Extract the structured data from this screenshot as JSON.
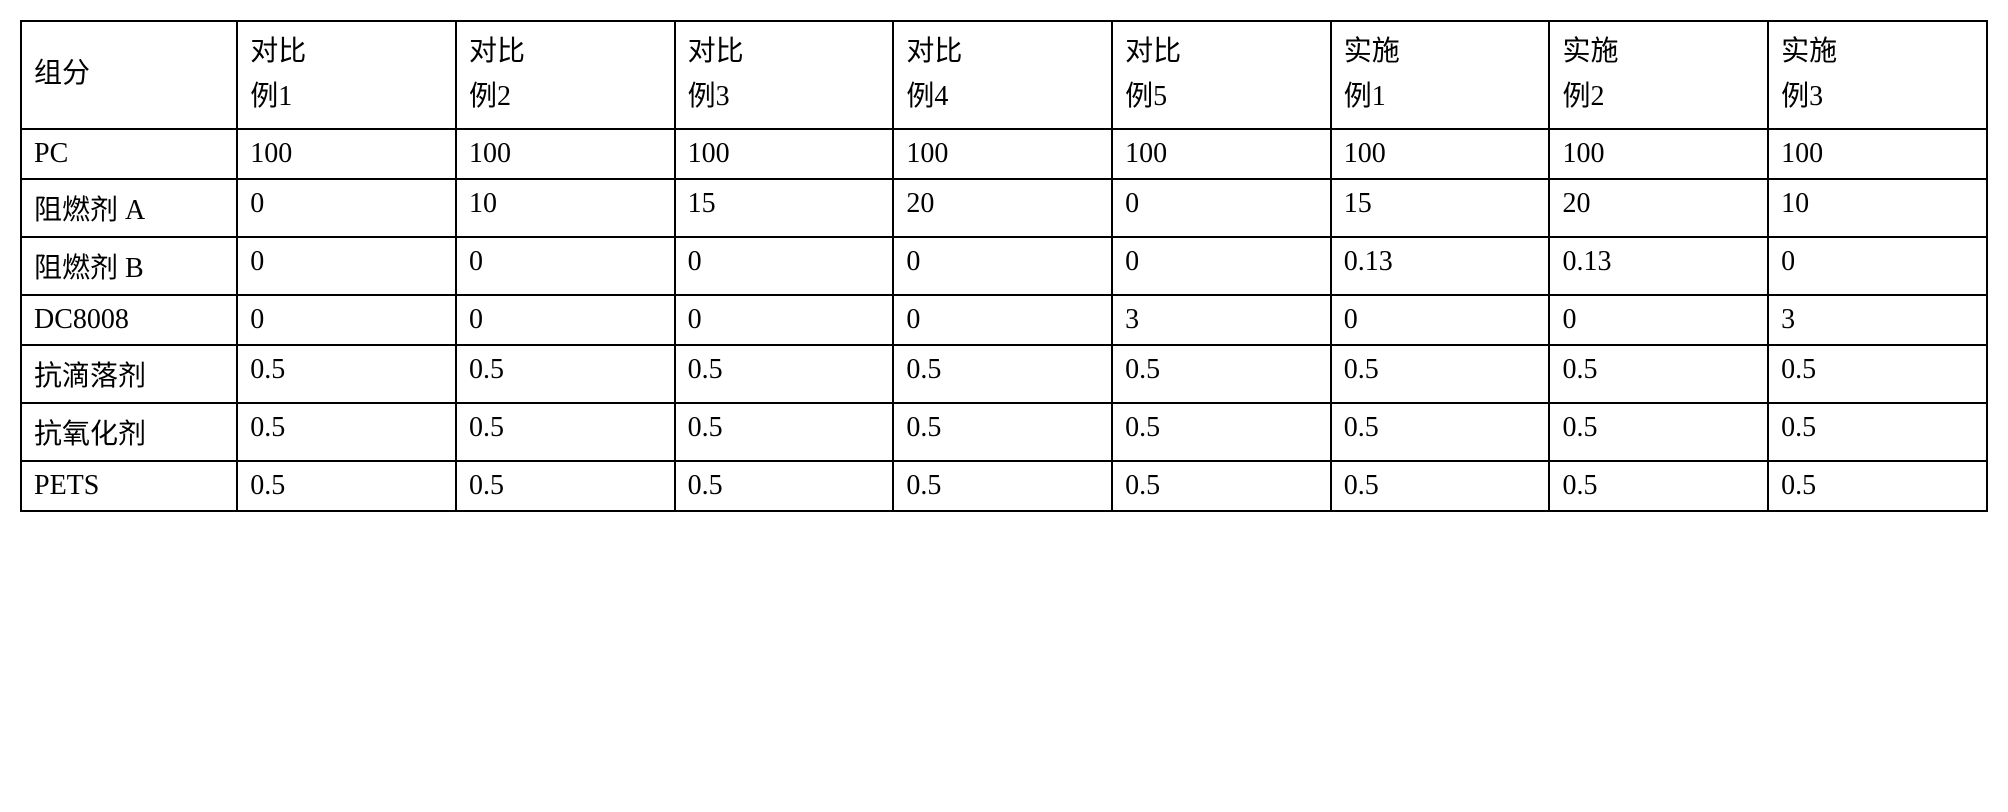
{
  "table": {
    "type": "table",
    "background_color": "#ffffff",
    "border_color": "#000000",
    "text_color": "#000000",
    "font_size": 28,
    "columns": [
      {
        "label_line1": "组分",
        "label_line2": "",
        "width_pct": 11
      },
      {
        "label_line1": "对比",
        "label_line2": "例1",
        "width_pct": 11.125
      },
      {
        "label_line1": "对比",
        "label_line2": "例2",
        "width_pct": 11.125
      },
      {
        "label_line1": "对比",
        "label_line2": "例3",
        "width_pct": 11.125
      },
      {
        "label_line1": "对比",
        "label_line2": "例4",
        "width_pct": 11.125
      },
      {
        "label_line1": "对比",
        "label_line2": "例5",
        "width_pct": 11.125
      },
      {
        "label_line1": "实施",
        "label_line2": "例1",
        "width_pct": 11.125
      },
      {
        "label_line1": "实施",
        "label_line2": "例2",
        "width_pct": 11.125
      },
      {
        "label_line1": "实施",
        "label_line2": "例3",
        "width_pct": 11.125
      }
    ],
    "rows": [
      {
        "label": "PC",
        "values": [
          "100",
          "100",
          "100",
          "100",
          "100",
          "100",
          "100",
          "100"
        ]
      },
      {
        "label": "阻燃剂 A",
        "values": [
          "0",
          "10",
          "15",
          "20",
          "0",
          "15",
          "20",
          "10"
        ]
      },
      {
        "label": "阻燃剂 B",
        "values": [
          "0",
          "0",
          "0",
          "0",
          "0",
          "0.13",
          "0.13",
          "0"
        ]
      },
      {
        "label": "DC8008",
        "values": [
          "0",
          "0",
          "0",
          "0",
          "3",
          "0",
          "0",
          "3"
        ]
      },
      {
        "label": "抗滴落剂",
        "values": [
          "0.5",
          "0.5",
          "0.5",
          "0.5",
          "0.5",
          "0.5",
          "0.5",
          "0.5"
        ]
      },
      {
        "label": "抗氧化剂",
        "values": [
          "0.5",
          "0.5",
          "0.5",
          "0.5",
          "0.5",
          "0.5",
          "0.5",
          "0.5"
        ]
      },
      {
        "label": "PETS",
        "values": [
          "0.5",
          "0.5",
          "0.5",
          "0.5",
          "0.5",
          "0.5",
          "0.5",
          "0.5"
        ]
      }
    ]
  }
}
